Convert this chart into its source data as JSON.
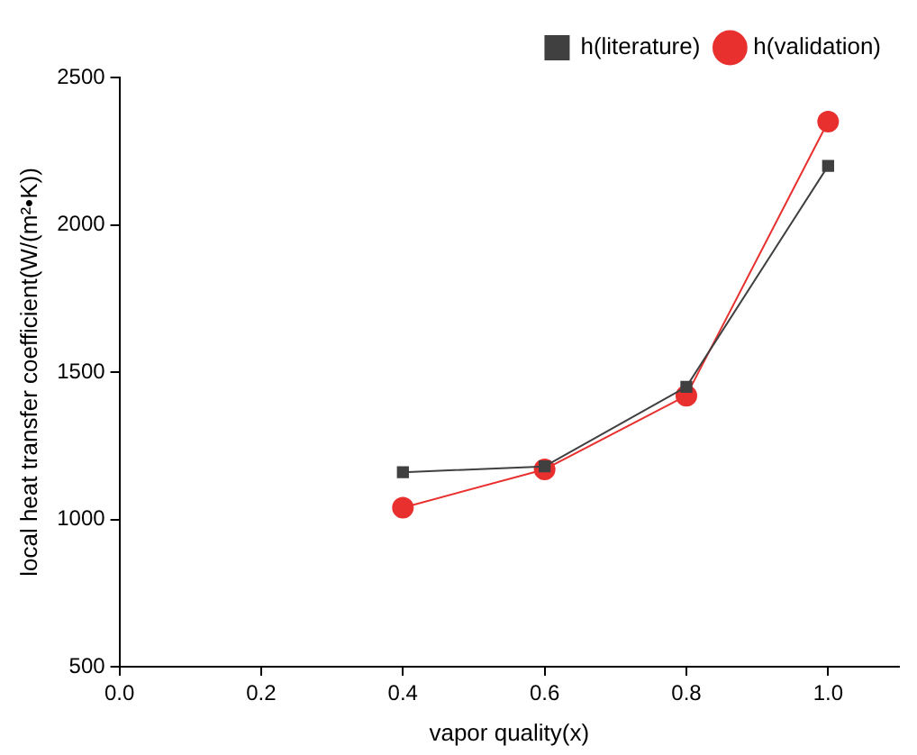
{
  "chart_data": {
    "type": "line",
    "xlabel": "vapor quality(x)",
    "ylabel": "local heat transfer coefficient(W/(m²•K))",
    "x": [
      0.4,
      0.6,
      0.8,
      1.0
    ],
    "series": [
      {
        "name": "h(literature)",
        "color": "#404040",
        "marker": "square",
        "values": [
          1160,
          1180,
          1450,
          2200
        ]
      },
      {
        "name": "h(validation)",
        "color": "#e8302e",
        "marker": "circle",
        "values": [
          1040,
          1170,
          1420,
          2350
        ]
      }
    ],
    "xlim": [
      0,
      1.1
    ],
    "xticks": [
      {
        "value": 0,
        "label": "0.0"
      },
      {
        "value": 0.2,
        "label": "0.2"
      },
      {
        "value": 0.4,
        "label": "0.4"
      },
      {
        "value": 0.6,
        "label": "0.6"
      },
      {
        "value": 0.8,
        "label": "0.8"
      },
      {
        "value": 1,
        "label": "1.0"
      }
    ],
    "ylim": [
      500,
      2500
    ],
    "yticks": [
      500,
      1000,
      1500,
      2000,
      2500
    ],
    "grid": false,
    "legend": "top right",
    "line_style": "solid"
  }
}
